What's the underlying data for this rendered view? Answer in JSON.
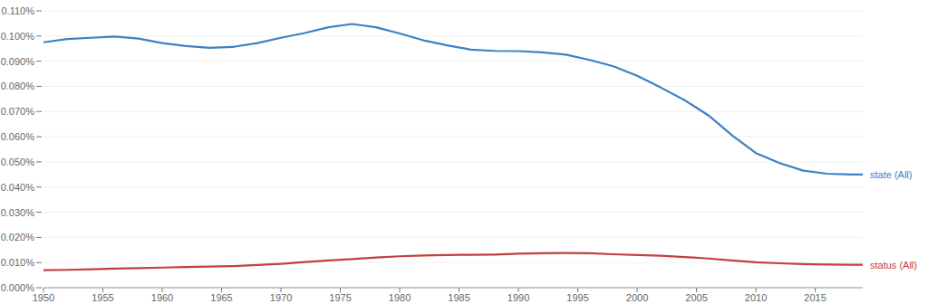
{
  "chart_data": {
    "type": "line",
    "x": [
      1950,
      1952,
      1954,
      1956,
      1958,
      1960,
      1962,
      1964,
      1966,
      1968,
      1970,
      1972,
      1974,
      1976,
      1978,
      1980,
      1982,
      1984,
      1986,
      1988,
      1990,
      1992,
      1994,
      1996,
      1998,
      2000,
      2002,
      2004,
      2006,
      2008,
      2010,
      2012,
      2014,
      2016,
      2018,
      2019
    ],
    "series": [
      {
        "name": "state (All)",
        "color": "#3d80c6",
        "values": [
          0.0975,
          0.0988,
          0.0993,
          0.0998,
          0.099,
          0.0972,
          0.096,
          0.0953,
          0.0957,
          0.0972,
          0.0993,
          0.1012,
          0.1035,
          0.1048,
          0.1035,
          0.101,
          0.0983,
          0.0963,
          0.0946,
          0.0941,
          0.094,
          0.0935,
          0.0926,
          0.0905,
          0.088,
          0.0842,
          0.0795,
          0.0745,
          0.0685,
          0.0605,
          0.0535,
          0.0495,
          0.0465,
          0.0453,
          0.045,
          0.045
        ]
      },
      {
        "name": "status (All)",
        "color": "#c2403d",
        "values": [
          0.007,
          0.0071,
          0.0073,
          0.0076,
          0.0078,
          0.008,
          0.0082,
          0.0084,
          0.0086,
          0.009,
          0.0095,
          0.0102,
          0.0108,
          0.0114,
          0.012,
          0.0125,
          0.0128,
          0.013,
          0.0131,
          0.0132,
          0.0135,
          0.0137,
          0.0138,
          0.0137,
          0.0133,
          0.013,
          0.0127,
          0.0122,
          0.0116,
          0.0108,
          0.0101,
          0.0097,
          0.0094,
          0.0092,
          0.0091,
          0.0091
        ]
      }
    ],
    "xlim": [
      1950,
      2019
    ],
    "xticks": [
      1950,
      1955,
      1960,
      1965,
      1970,
      1975,
      1980,
      1985,
      1990,
      1995,
      2000,
      2005,
      2010,
      2015
    ],
    "ylim": [
      0,
      0.11
    ],
    "yticks": [
      {
        "value": 0,
        "label": "0.000%"
      },
      {
        "value": 0.01,
        "label": "0.010%"
      },
      {
        "value": 0.02,
        "label": "0.020%"
      },
      {
        "value": 0.03,
        "label": "0.030%"
      },
      {
        "value": 0.04,
        "label": "0.040%"
      },
      {
        "value": 0.05,
        "label": "0.050%"
      },
      {
        "value": 0.06,
        "label": "0.060%"
      },
      {
        "value": 0.07,
        "label": "0.070%"
      },
      {
        "value": 0.08,
        "label": "0.080%"
      },
      {
        "value": 0.09,
        "label": "0.090%"
      },
      {
        "value": 0.1,
        "label": "0.100%"
      },
      {
        "value": 0.11,
        "label": "0.110%"
      }
    ],
    "grid": true
  }
}
